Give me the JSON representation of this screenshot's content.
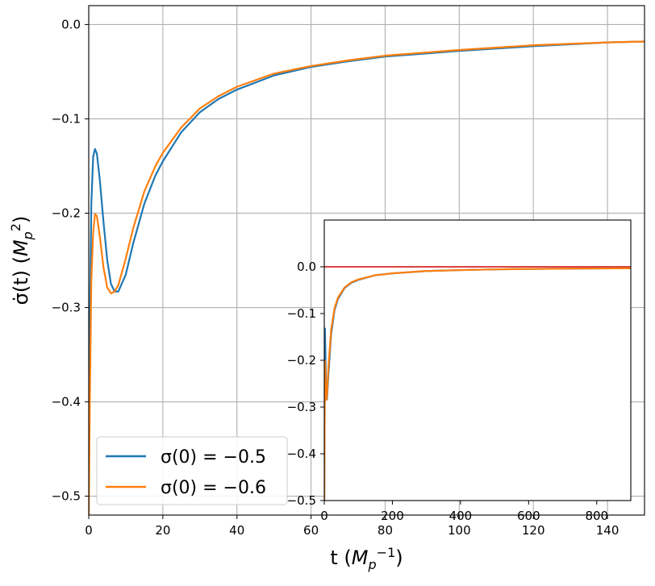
{
  "chart_data": [
    {
      "type": "line",
      "title": "",
      "xlabel": "t (M_p^{-1})",
      "ylabel": "σ̇(t) (M_p^2)",
      "xlim": [
        0,
        150
      ],
      "ylim": [
        -0.52,
        0.02
      ],
      "x_ticks": [
        "0",
        "20",
        "40",
        "60",
        "80",
        "100",
        "120",
        "140"
      ],
      "y_ticks": [
        "0.0",
        "−0.1",
        "−0.2",
        "−0.3",
        "−0.4",
        "−0.5"
      ],
      "grid": true,
      "legend_position": "lower-left",
      "series": [
        {
          "name": "σ(0) = −0.5",
          "color": "#1f77b4",
          "x": [
            0,
            0.3,
            0.7,
            1.2,
            1.7,
            2.2,
            3,
            4,
            5,
            6,
            7,
            8,
            10,
            12,
            15,
            18,
            20,
            25,
            30,
            35,
            40,
            50,
            60,
            70,
            80,
            100,
            120,
            140,
            150
          ],
          "y": [
            -0.52,
            -0.32,
            -0.19,
            -0.14,
            -0.132,
            -0.137,
            -0.165,
            -0.21,
            -0.25,
            -0.275,
            -0.283,
            -0.283,
            -0.265,
            -0.232,
            -0.19,
            -0.16,
            -0.145,
            -0.114,
            -0.093,
            -0.079,
            -0.069,
            -0.054,
            -0.045,
            -0.039,
            -0.034,
            -0.028,
            -0.023,
            -0.019,
            -0.018
          ]
        },
        {
          "name": "σ(0) = −0.6",
          "color": "#ff7f0e",
          "x": [
            0,
            0.3,
            0.7,
            1.2,
            1.7,
            2.2,
            3,
            4,
            5,
            6,
            7,
            8,
            10,
            12,
            15,
            18,
            20,
            25,
            30,
            35,
            40,
            50,
            60,
            70,
            80,
            100,
            120,
            140,
            150
          ],
          "y": [
            -0.52,
            -0.4,
            -0.27,
            -0.22,
            -0.201,
            -0.203,
            -0.225,
            -0.258,
            -0.279,
            -0.285,
            -0.283,
            -0.276,
            -0.248,
            -0.216,
            -0.177,
            -0.15,
            -0.136,
            -0.109,
            -0.089,
            -0.076,
            -0.066,
            -0.052,
            -0.044,
            -0.038,
            -0.033,
            -0.027,
            -0.022,
            -0.019,
            -0.018
          ]
        }
      ]
    },
    {
      "type": "line",
      "title": "",
      "xlabel": "",
      "ylabel": "",
      "xlim": [
        0,
        900
      ],
      "ylim": [
        -0.5,
        0.1
      ],
      "x_ticks": [
        "0",
        "200",
        "400",
        "600",
        "800"
      ],
      "y_ticks": [
        "0.0",
        "−0.1",
        "−0.2",
        "−0.3",
        "−0.4",
        "−0.5"
      ],
      "grid": false,
      "reference_line": {
        "y": 0.0,
        "color": "#d62728"
      },
      "series": [
        {
          "color": "#1f77b4",
          "x": [
            0,
            2,
            5,
            8,
            12,
            20,
            30,
            40,
            60,
            80,
            100,
            150,
            200,
            300,
            400,
            500,
            600,
            700,
            800,
            900
          ],
          "y": [
            -0.5,
            -0.132,
            -0.25,
            -0.283,
            -0.232,
            -0.145,
            -0.093,
            -0.069,
            -0.045,
            -0.034,
            -0.028,
            -0.018,
            -0.014,
            -0.009,
            -0.007,
            -0.0055,
            -0.0045,
            -0.004,
            -0.0035,
            -0.003
          ]
        },
        {
          "color": "#ff7f0e",
          "x": [
            0,
            2,
            6,
            8,
            12,
            20,
            30,
            40,
            60,
            80,
            100,
            150,
            200,
            300,
            400,
            500,
            600,
            700,
            800,
            900
          ],
          "y": [
            -0.5,
            -0.201,
            -0.285,
            -0.276,
            -0.216,
            -0.136,
            -0.089,
            -0.066,
            -0.044,
            -0.033,
            -0.027,
            -0.018,
            -0.014,
            -0.009,
            -0.007,
            -0.0055,
            -0.0045,
            -0.004,
            -0.0035,
            -0.003
          ]
        }
      ]
    }
  ]
}
